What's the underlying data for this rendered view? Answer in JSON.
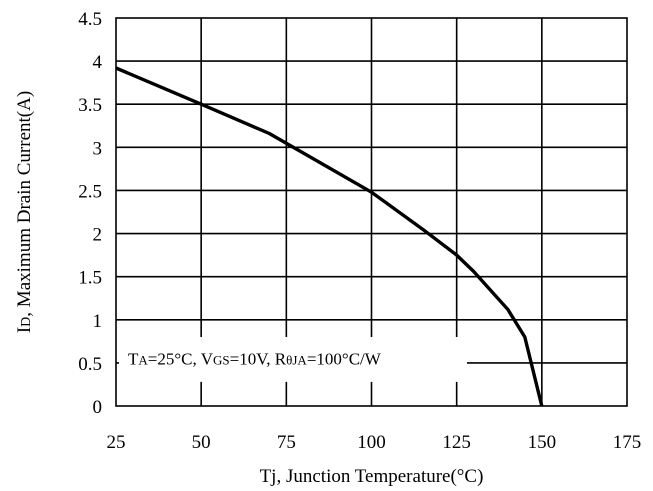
{
  "chart_data": {
    "type": "line",
    "title": "",
    "xlabel": "Tj, Junction Temperature(°C)",
    "ylabel": "ID, Maximum Drain Current(A)",
    "ylabel_parts": {
      "main": "I",
      "subscript": "D",
      "rest": ", Maximum Drain Current(A)"
    },
    "xlim": [
      25,
      175
    ],
    "ylim": [
      0,
      4.5
    ],
    "x_ticks": [
      25,
      50,
      75,
      100,
      125,
      150,
      175
    ],
    "x_tick_labels": [
      "25",
      "50",
      "75",
      "100",
      "125",
      "150",
      "175"
    ],
    "y_ticks": [
      0,
      0.5,
      1,
      1.5,
      2,
      2.5,
      3,
      3.5,
      4,
      4.5
    ],
    "y_tick_labels": [
      "0",
      "0.5",
      "1",
      "1.5",
      "2",
      "2.5",
      "3",
      "3.5",
      "4",
      "4.5"
    ],
    "grid": true,
    "legend": "none",
    "series": [
      {
        "x": [
          25,
          50,
          70,
          100,
          115,
          125,
          130,
          140,
          145,
          150
        ],
        "y": [
          3.92,
          3.5,
          3.16,
          2.48,
          2.05,
          1.75,
          1.56,
          1.12,
          0.8,
          0
        ],
        "color": "#000000"
      }
    ],
    "annotation": {
      "text": "TA=25°C, VGS=10V, RθJA=100°C/W",
      "parts": [
        {
          "t": "T",
          "sub": false
        },
        {
          "t": "A",
          "sub": true
        },
        {
          "t": "=25°C, V",
          "sub": false
        },
        {
          "t": "GS",
          "sub": true
        },
        {
          "t": "=10V, R",
          "sub": false
        },
        {
          "t": "θJA",
          "sub": true
        },
        {
          "t": "=100°C/W",
          "sub": false
        }
      ]
    }
  }
}
